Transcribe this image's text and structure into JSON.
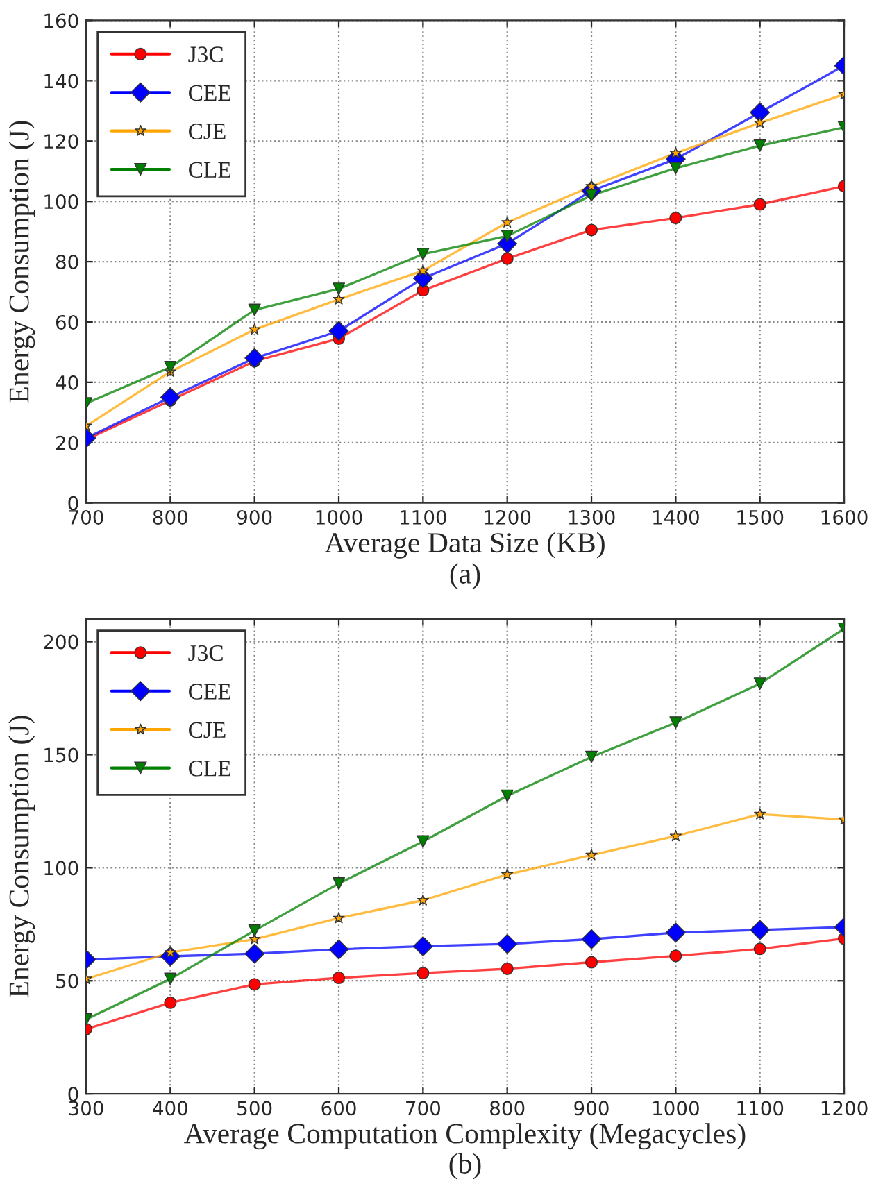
{
  "chart_data": [
    {
      "type": "line",
      "xlabel": "Average Data Size (KB)",
      "ylabel": "Energy Consumption (J)",
      "annotations": [
        "(a)"
      ],
      "x": [
        700,
        800,
        900,
        1000,
        1100,
        1200,
        1300,
        1400,
        1500,
        1600
      ],
      "xlim": [
        700,
        1600
      ],
      "xticks": [
        700,
        800,
        900,
        1000,
        1100,
        1200,
        1300,
        1400,
        1500,
        1600
      ],
      "ylim": [
        0,
        160
      ],
      "yticks": [
        0,
        20,
        40,
        60,
        80,
        100,
        120,
        140,
        160
      ],
      "grid": true,
      "legend": "top left",
      "series": [
        {
          "name": "J3C",
          "color": "#ff0000",
          "marker": "circle",
          "values": [
            21,
            34,
            47,
            54.5,
            70.5,
            81,
            90.5,
            94.5,
            99,
            105
          ]
        },
        {
          "name": "CEE",
          "color": "#0000ff",
          "marker": "diamond",
          "values": [
            21.5,
            35,
            48,
            57,
            74.5,
            86,
            103.5,
            114,
            129.5,
            145
          ]
        },
        {
          "name": "CJE",
          "color": "#ffa500",
          "marker": "star",
          "values": [
            25.5,
            43.5,
            57.5,
            67.5,
            77,
            93,
            105,
            116,
            126,
            135.5
          ]
        },
        {
          "name": "CLE",
          "color": "#008000",
          "marker": "triangle",
          "values": [
            33,
            45,
            64,
            71,
            82.5,
            88.5,
            102,
            111,
            118.5,
            124.5
          ]
        }
      ]
    },
    {
      "type": "line",
      "xlabel": "Average Computation Complexity (Megacycles)",
      "ylabel": "Energy Consumption (J)",
      "annotations": [
        "(b)"
      ],
      "x": [
        300,
        400,
        500,
        600,
        700,
        800,
        900,
        1000,
        1100,
        1200
      ],
      "xlim": [
        300,
        1200
      ],
      "xticks": [
        300,
        400,
        500,
        600,
        700,
        800,
        900,
        1000,
        1100,
        1200
      ],
      "ylim": [
        0,
        210
      ],
      "yticks": [
        0,
        50,
        100,
        150,
        200
      ],
      "grid": true,
      "legend": "top left",
      "series": [
        {
          "name": "J3C",
          "color": "#ff0000",
          "marker": "circle",
          "values": [
            28.6,
            40.3,
            48.4,
            51.3,
            53.4,
            55.3,
            58.2,
            61,
            64.1,
            68.7
          ]
        },
        {
          "name": "CEE",
          "color": "#0000ff",
          "marker": "diamond",
          "values": [
            59.4,
            60.8,
            62,
            63.9,
            65.3,
            66.3,
            68.4,
            71.3,
            72.5,
            73.7
          ]
        },
        {
          "name": "CJE",
          "color": "#ffa500",
          "marker": "star",
          "values": [
            50.8,
            62.5,
            68.4,
            77.7,
            85.6,
            97,
            105.6,
            114,
            123.7,
            121.3
          ]
        },
        {
          "name": "CLE",
          "color": "#008000",
          "marker": "triangle",
          "values": [
            32.9,
            50.8,
            72.2,
            93,
            111.6,
            131.8,
            149,
            164.2,
            181.4,
            205.7
          ]
        }
      ]
    }
  ]
}
